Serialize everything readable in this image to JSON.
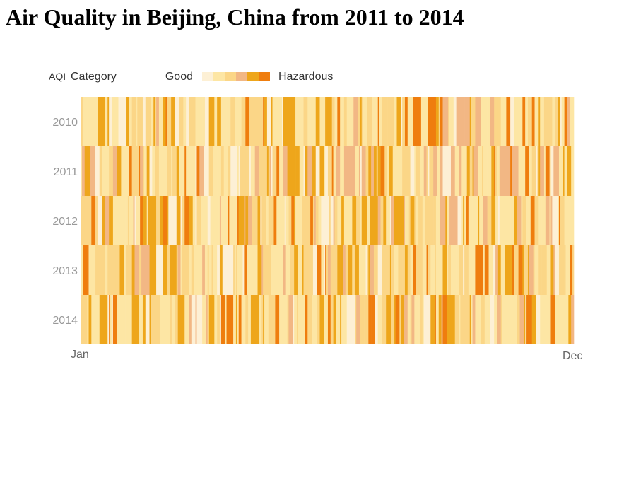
{
  "title": "Air Quality in Beijing, China from 2011 to 2014",
  "chart_data": {
    "type": "heatmap",
    "title": "Air Quality in Beijing, China from 2011 to 2014",
    "legend": {
      "title_prefix": "AQI",
      "title": "Category",
      "low_label": "Good",
      "high_label": "Hazardous",
      "placement": "top-left",
      "colors": [
        "#fdf0d5",
        "#fde6a4",
        "#fbd687",
        "#f2b784",
        "#eea61b",
        "#ef7d0e"
      ]
    },
    "years": [
      "2010",
      "2011",
      "2012",
      "2013",
      "2014"
    ],
    "x_labels": {
      "start": "Jan",
      "end": "Dec"
    },
    "days_per_year": 365,
    "category_counts": [
      6,
      6,
      6,
      6,
      6
    ],
    "grid": false
  }
}
